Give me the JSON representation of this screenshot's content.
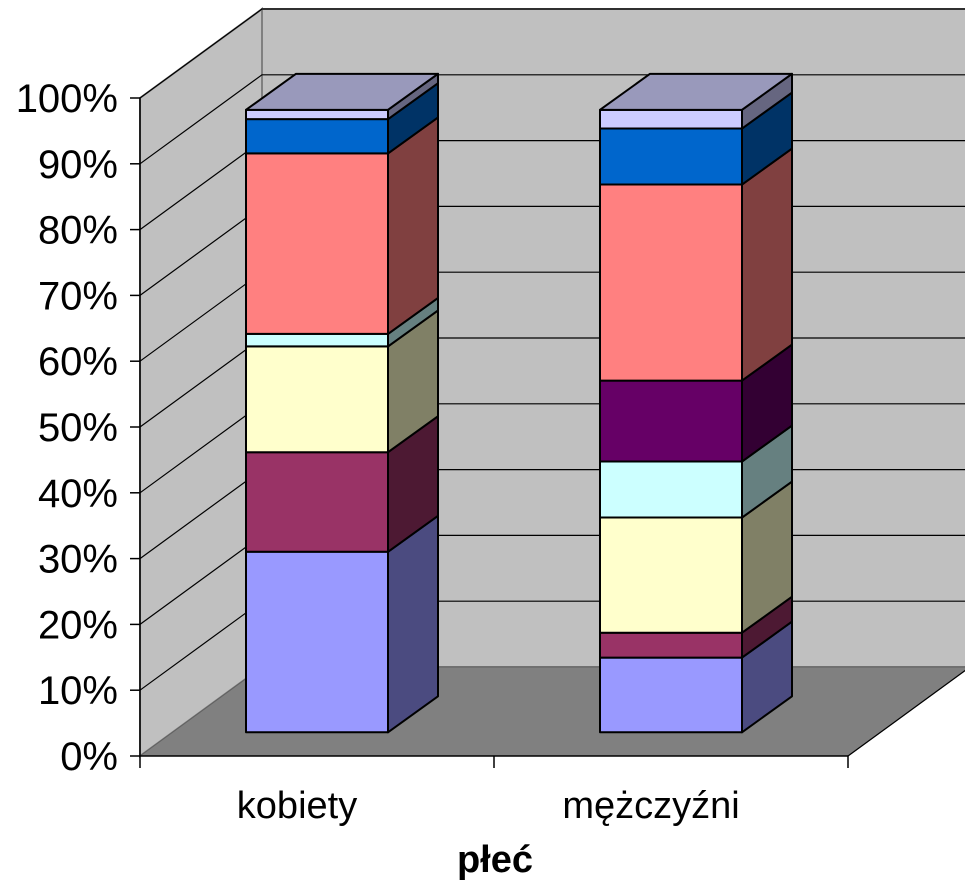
{
  "chart_data": {
    "type": "bar",
    "stacked": true,
    "percent_stacked": true,
    "three_d": true,
    "title": "",
    "xlabel": "płeć",
    "ylabel": "",
    "categories": [
      "kobiety",
      "mężczyźni"
    ],
    "y_ticks": [
      "0%",
      "10%",
      "20%",
      "30%",
      "40%",
      "50%",
      "60%",
      "70%",
      "80%",
      "90%",
      "100%"
    ],
    "ylim": [
      0,
      100
    ],
    "grid": true,
    "legend": "none",
    "series": [
      {
        "values": [
          29.0,
          12.0
        ],
        "color": "#9999ff",
        "side_color": "#4b4b80",
        "top_color": "#8080cc"
      },
      {
        "values": [
          16.0,
          4.0
        ],
        "color": "#993366",
        "side_color": "#4d1933",
        "top_color": "#802a55"
      },
      {
        "values": [
          17.0,
          18.5
        ],
        "color": "#ffffcc",
        "side_color": "#808066",
        "top_color": "#ccccaa"
      },
      {
        "values": [
          2.0,
          9.0
        ],
        "color": "#ccffff",
        "side_color": "#668080",
        "top_color": "#aacccc"
      },
      {
        "values": [
          0.0,
          13.0
        ],
        "color": "#660066",
        "side_color": "#330033",
        "top_color": "#550055"
      },
      {
        "values": [
          29.0,
          31.5
        ],
        "color": "#ff8080",
        "side_color": "#804040",
        "top_color": "#cc6666"
      },
      {
        "values": [
          5.5,
          9.0
        ],
        "color": "#0066cc",
        "side_color": "#003366",
        "top_color": "#00558a"
      },
      {
        "values": [
          1.5,
          3.0
        ],
        "color": "#ccccff",
        "side_color": "#666680",
        "top_color": "#9999bb"
      }
    ]
  }
}
